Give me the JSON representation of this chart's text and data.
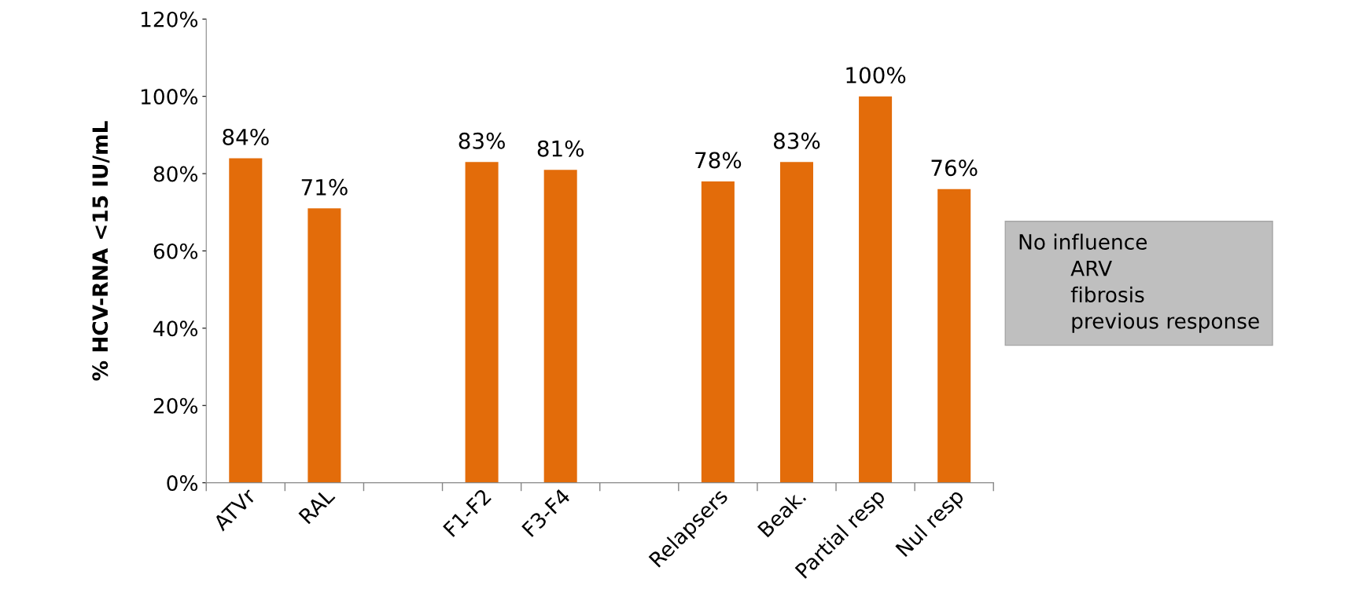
{
  "chart_data": {
    "type": "bar",
    "ylabel": "% HCV-RNA <15 IU/mL",
    "categories": [
      "ATVr",
      "RAL",
      null,
      "F1-F2",
      "F3-F4",
      null,
      "Relapsers",
      "Beak.",
      "Partial resp",
      "Nul resp"
    ],
    "values": [
      84,
      71,
      null,
      83,
      81,
      null,
      78,
      83,
      100,
      76
    ],
    "value_labels": [
      "84%",
      "71%",
      null,
      "83%",
      "81%",
      null,
      "78%",
      "83%",
      "100%",
      "76%"
    ],
    "color": "#e36c0a",
    "ylim": [
      0,
      120
    ],
    "yticks": [
      {
        "value": 0,
        "label": "0%"
      },
      {
        "value": 20,
        "label": "20%"
      },
      {
        "value": 40,
        "label": "40%"
      },
      {
        "value": 60,
        "label": "60%"
      },
      {
        "value": 80,
        "label": "80%"
      },
      {
        "value": 100,
        "label": "100%"
      },
      {
        "value": 120,
        "label": "120%"
      }
    ],
    "grid": false,
    "legend": false,
    "annotations": [
      "No influence\n        ARV\n        fibrosis\n        previous response"
    ]
  }
}
